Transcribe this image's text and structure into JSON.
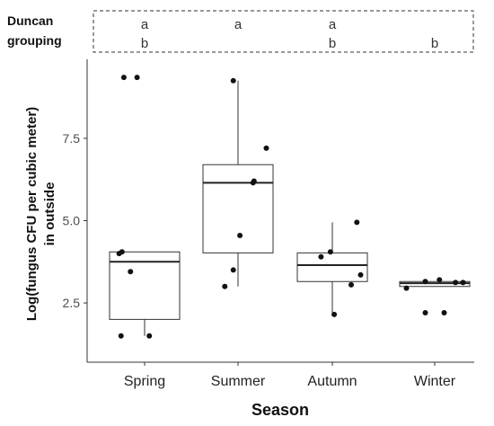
{
  "duncan": {
    "title_line1": "Duncan",
    "title_line2": "grouping",
    "groups": [
      {
        "category": "Spring",
        "row1": "a",
        "row2": "b"
      },
      {
        "category": "Summer",
        "row1": "a",
        "row2": ""
      },
      {
        "category": "Autumn",
        "row1": "a",
        "row2": "b"
      },
      {
        "category": "Winter",
        "row1": "",
        "row2": "b"
      }
    ]
  },
  "chart_data": {
    "type": "box",
    "xlabel": "Season",
    "ylabel_line1": "Log(fungus CFU per cubic meter)",
    "ylabel_line2": "in outside",
    "categories": [
      "Spring",
      "Summer",
      "Autumn",
      "Winter"
    ],
    "yticks": [
      "2.5",
      "5.0",
      "7.5"
    ],
    "ytick_values": [
      2.5,
      5.0,
      7.5
    ],
    "ylim": [
      0.7,
      9.9
    ],
    "grid": false,
    "boxes": [
      {
        "category": "Spring",
        "q1": 2.0,
        "median": 3.75,
        "q3": 4.05,
        "whisker_low": 1.5,
        "whisker_high": 4.05
      },
      {
        "category": "Summer",
        "q1": 4.02,
        "median": 6.15,
        "q3": 6.7,
        "whisker_low": 3.0,
        "whisker_high": 9.25
      },
      {
        "category": "Autumn",
        "q1": 3.15,
        "median": 3.65,
        "q3": 4.02,
        "whisker_low": 2.2,
        "whisker_high": 4.95
      },
      {
        "category": "Winter",
        "q1": 3.0,
        "median": 3.1,
        "q3": 3.15,
        "whisker_low": 3.0,
        "whisker_high": 3.15
      }
    ],
    "points": [
      {
        "category": "Spring",
        "jitter": -0.22,
        "y": 9.35
      },
      {
        "category": "Spring",
        "jitter": -0.08,
        "y": 9.35
      },
      {
        "category": "Spring",
        "jitter": -0.27,
        "y": 4.0
      },
      {
        "category": "Spring",
        "jitter": -0.24,
        "y": 4.05
      },
      {
        "category": "Spring",
        "jitter": -0.15,
        "y": 3.45
      },
      {
        "category": "Spring",
        "jitter": -0.25,
        "y": 1.5
      },
      {
        "category": "Spring",
        "jitter": 0.05,
        "y": 1.5
      },
      {
        "category": "Summer",
        "jitter": -0.05,
        "y": 9.25
      },
      {
        "category": "Summer",
        "jitter": 0.3,
        "y": 7.2
      },
      {
        "category": "Summer",
        "jitter": 0.16,
        "y": 6.15
      },
      {
        "category": "Summer",
        "jitter": 0.17,
        "y": 6.2
      },
      {
        "category": "Summer",
        "jitter": 0.02,
        "y": 4.55
      },
      {
        "category": "Summer",
        "jitter": -0.05,
        "y": 3.5
      },
      {
        "category": "Summer",
        "jitter": -0.14,
        "y": 3.0
      },
      {
        "category": "Autumn",
        "jitter": -0.12,
        "y": 3.9
      },
      {
        "category": "Autumn",
        "jitter": -0.02,
        "y": 4.05
      },
      {
        "category": "Autumn",
        "jitter": 0.26,
        "y": 4.95
      },
      {
        "category": "Autumn",
        "jitter": 0.3,
        "y": 3.35
      },
      {
        "category": "Autumn",
        "jitter": 0.2,
        "y": 3.05
      },
      {
        "category": "Autumn",
        "jitter": 0.02,
        "y": 2.15
      },
      {
        "category": "Winter",
        "jitter": -0.3,
        "y": 2.95
      },
      {
        "category": "Winter",
        "jitter": -0.1,
        "y": 3.15
      },
      {
        "category": "Winter",
        "jitter": 0.05,
        "y": 3.2
      },
      {
        "category": "Winter",
        "jitter": 0.22,
        "y": 3.12
      },
      {
        "category": "Winter",
        "jitter": 0.3,
        "y": 3.12
      },
      {
        "category": "Winter",
        "jitter": -0.1,
        "y": 2.2
      },
      {
        "category": "Winter",
        "jitter": 0.1,
        "y": 2.2
      }
    ]
  }
}
